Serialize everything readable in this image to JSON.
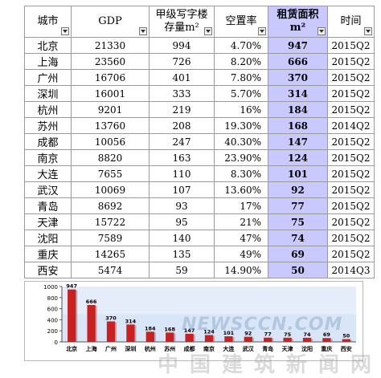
{
  "table": {
    "headers": {
      "city": "城市",
      "gdp": "GDP",
      "stock_line1": "甲级写字楼",
      "stock_line2": "存量m²",
      "vacancy": "空置率",
      "rent_line1": "租赁面积",
      "rent_line2": "m²",
      "time": "时间"
    },
    "rows": [
      {
        "city": "北京",
        "gdp": "21330",
        "stock": "994",
        "vacancy": "4.70%",
        "rent": "947",
        "time": "2015Q2"
      },
      {
        "city": "上海",
        "gdp": "23560",
        "stock": "726",
        "vacancy": "8.20%",
        "rent": "666",
        "time": "2015Q2"
      },
      {
        "city": "广州",
        "gdp": "16706",
        "stock": "401",
        "vacancy": "7.80%",
        "rent": "370",
        "time": "2015Q2"
      },
      {
        "city": "深圳",
        "gdp": "16001",
        "stock": "333",
        "vacancy": "5.70%",
        "rent": "314",
        "time": "2015Q2"
      },
      {
        "city": "杭州",
        "gdp": "9201",
        "stock": "219",
        "vacancy": "16%",
        "rent": "184",
        "time": "2015Q2"
      },
      {
        "city": "苏州",
        "gdp": "13760",
        "stock": "208",
        "vacancy": "19.30%",
        "rent": "168",
        "time": "2014Q2"
      },
      {
        "city": "成都",
        "gdp": "10056",
        "stock": "247",
        "vacancy": "40.30%",
        "rent": "147",
        "time": "2015Q2"
      },
      {
        "city": "南京",
        "gdp": "8820",
        "stock": "163",
        "vacancy": "23.90%",
        "rent": "124",
        "time": "2015Q2"
      },
      {
        "city": "大连",
        "gdp": "7655",
        "stock": "110",
        "vacancy": "8.30%",
        "rent": "101",
        "time": "2015Q2"
      },
      {
        "city": "武汉",
        "gdp": "10069",
        "stock": "107",
        "vacancy": "13.60%",
        "rent": "92",
        "time": "2015Q2"
      },
      {
        "city": "青岛",
        "gdp": "8692",
        "stock": "93",
        "vacancy": "17%",
        "rent": "77",
        "time": "2015Q2"
      },
      {
        "city": "天津",
        "gdp": "15722",
        "stock": "95",
        "vacancy": "21%",
        "rent": "75",
        "time": "2015Q2"
      },
      {
        "city": "沈阳",
        "gdp": "7589",
        "stock": "140",
        "vacancy": "47%",
        "rent": "74",
        "time": "2015Q2"
      },
      {
        "city": "重庆",
        "gdp": "14265",
        "stock": "135",
        "vacancy": "49%",
        "rent": "69",
        "time": "2015Q2"
      },
      {
        "city": "西安",
        "gdp": "5474",
        "stock": "59",
        "vacancy": "14.90%",
        "rent": "50",
        "time": "2014Q3"
      }
    ]
  },
  "colors": {
    "rent_highlight": "#c9c9ff",
    "bar_fill": "#cc1f1f",
    "plot_bg": "#d9e6f7"
  },
  "watermark": {
    "en": "NEWSCCN.COM",
    "cn": "中国建筑新闻网"
  },
  "chart_data": {
    "type": "bar",
    "categories": [
      "北京",
      "上海",
      "广州",
      "深圳",
      "杭州",
      "苏州",
      "成都",
      "南京",
      "大连",
      "武汉",
      "青岛",
      "天津",
      "沈阳",
      "重庆",
      "西安"
    ],
    "values": [
      947,
      666,
      370,
      314,
      184,
      168,
      147,
      124,
      101,
      92,
      77,
      75,
      74,
      69,
      50
    ],
    "data_labels": [
      "947",
      "666",
      "370",
      "314",
      "184",
      "168",
      "147",
      "124",
      "101",
      "92",
      "77",
      "75",
      "74",
      "69",
      "50"
    ],
    "y_ticks": [
      0,
      200,
      400,
      600,
      800,
      1000
    ],
    "y_tick_labels": [
      "0",
      "200",
      "400",
      "600",
      "800",
      "1000"
    ],
    "ylim": [
      0,
      1000
    ],
    "title": "",
    "xlabel": "",
    "ylabel": "",
    "grid": false,
    "legend": "none"
  }
}
